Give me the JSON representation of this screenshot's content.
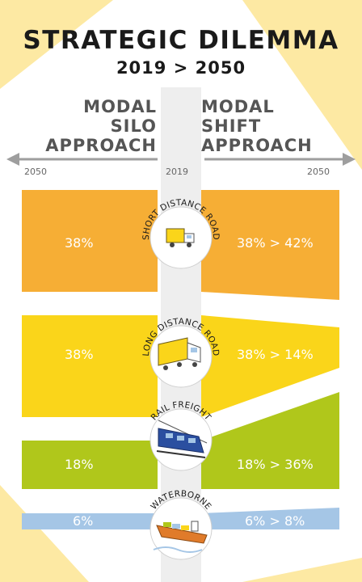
{
  "title": "STRATEGIC DILEMMA",
  "subtitle": "2019 > 2050",
  "left_heading": [
    "MODAL",
    "SILO",
    "APPROACH"
  ],
  "right_heading": [
    "MODAL",
    "SHIFT",
    "APPROACH"
  ],
  "years": {
    "left": "2050",
    "center": "2019",
    "right": "2050"
  },
  "modes": [
    {
      "label": "SHORT DISTANCE ROAD",
      "left": "38%",
      "right": "38% > 42%",
      "color": "#f6ae35",
      "icon": "small-truck-icon"
    },
    {
      "label": "LONG DISTANCE ROAD",
      "left": "38%",
      "right": "38% > 14%",
      "color": "#fad51a",
      "icon": "long-truck-icon"
    },
    {
      "label": "RAIL FREIGHT",
      "left": "18%",
      "right": "18% > 36%",
      "color": "#b0c71b",
      "icon": "train-icon"
    },
    {
      "label": "WATERBORNE",
      "left": "6%",
      "right": "6% > 8%",
      "color": "#a5c6e6",
      "icon": "cargo-ship-icon"
    }
  ],
  "colors": {
    "background_accent": "#fde9a3",
    "spine": "#f0f0f0",
    "arrow": "#9e9e9e",
    "title": "#1a1a1a"
  }
}
